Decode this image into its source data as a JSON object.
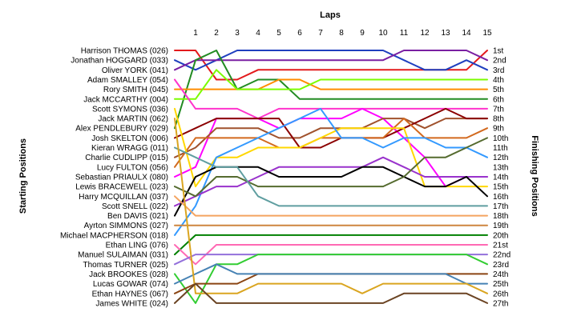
{
  "chart_data": {
    "type": "line",
    "xlabel": "Laps",
    "ylabel_left": "Starting Positions",
    "ylabel_right": "Finishing Positions",
    "x": [
      0,
      1,
      2,
      3,
      4,
      5,
      6,
      7,
      8,
      9,
      10,
      11,
      12,
      13,
      14,
      15
    ],
    "x_ticks": [
      "1",
      "2",
      "3",
      "4",
      "5",
      "6",
      "7",
      "8",
      "9",
      "10",
      "11",
      "12",
      "13",
      "14",
      "15"
    ],
    "y_reversed": true,
    "ylim": [
      1,
      27
    ],
    "grid": false,
    "starting_positions": [
      "Harrison THOMAS (026)",
      "Jonathan HOGGARD (033)",
      "Oliver YORK (041)",
      "Adam SMALLEY (054)",
      "Rory SMITH (045)",
      "Jack MCCARTHY (004)",
      "Scott SYMONS (036)",
      "Jack MARTIN (062)",
      "Alex PENDLEBURY (029)",
      "Josh SKELTON (006)",
      "Kieran WRAGG (011)",
      "Charlie CUDLIPP (015)",
      "Lucy FULTON (056)",
      "Sebastian PRIAULX (080)",
      "Lewis BRACEWELL (023)",
      "Harry MCQUILLAN (037)",
      "Scott SNELL (022)",
      "Ben DAVIS (021)",
      "Ayrton SIMMONS (027)",
      "Michael MACPHERSON (018)",
      "Ethan LING (076)",
      "Manuel SULAIMAN (031)",
      "Thomas TURNER (025)",
      "Jack BROOKES (028)",
      "Lucas GOWAR (074)",
      "Ethan HAYNES (067)",
      "James WHITE (024)"
    ],
    "finishing_positions": [
      "1st",
      "2nd",
      "3rd",
      "4th",
      "5th",
      "6th",
      "7th",
      "8th",
      "9th",
      "10th",
      "11th",
      "12th",
      "13th",
      "14th",
      "15th",
      "16th",
      "17th",
      "18th",
      "19th",
      "20th",
      "21st",
      "22nd",
      "23rd",
      "24th",
      "25th",
      "26th",
      "27th"
    ],
    "series": [
      {
        "color": "#e31a1c",
        "values": [
          1,
          1,
          4,
          4,
          3,
          3,
          3,
          3,
          3,
          3,
          3,
          3,
          3,
          3,
          3,
          1
        ]
      },
      {
        "color": "#1f3fbf",
        "values": [
          2,
          3,
          2,
          1,
          1,
          1,
          1,
          1,
          1,
          1,
          1,
          2,
          3,
          3,
          2,
          3
        ]
      },
      {
        "color": "#7a1fa2",
        "values": [
          3,
          2,
          2,
          2,
          2,
          2,
          2,
          2,
          2,
          2,
          2,
          1,
          1,
          1,
          1,
          2
        ]
      },
      {
        "color": "#228b22",
        "values": [
          9,
          2,
          1,
          5,
          4,
          4,
          6,
          6,
          6,
          6,
          6,
          6,
          6,
          6,
          6,
          6
        ]
      },
      {
        "color": "#ff8c00",
        "values": [
          5,
          5,
          5,
          5,
          5,
          4,
          4,
          5,
          5,
          5,
          5,
          5,
          5,
          5,
          5,
          5
        ]
      },
      {
        "color": "#7cfc00",
        "values": [
          6,
          6,
          3,
          5,
          5,
          5,
          5,
          4,
          4,
          4,
          4,
          4,
          4,
          4,
          4,
          4
        ]
      },
      {
        "color": "#ff33cc",
        "values": [
          4,
          7,
          7,
          7,
          8,
          7,
          7,
          7,
          7,
          7,
          7,
          7,
          7,
          7,
          7,
          7
        ]
      },
      {
        "color": "#ff00ff",
        "values": [
          14,
          13,
          8,
          8,
          8,
          9,
          8,
          8,
          8,
          7,
          8,
          10,
          12,
          15,
          14,
          14
        ]
      },
      {
        "color": "#a0522d",
        "values": [
          12,
          11,
          9,
          9,
          9,
          10,
          10,
          9,
          9,
          9,
          8,
          8,
          9,
          8,
          8,
          8
        ]
      },
      {
        "color": "#8b0000",
        "values": [
          10,
          9,
          8,
          8,
          8,
          8,
          11,
          11,
          10,
          10,
          10,
          9,
          8,
          7,
          8,
          8
        ]
      },
      {
        "color": "#d2691e",
        "values": [
          13,
          10,
          10,
          10,
          10,
          11,
          11,
          10,
          10,
          10,
          10,
          8,
          10,
          10,
          10,
          9
        ]
      },
      {
        "color": "#ffd700",
        "values": [
          7,
          15,
          12,
          12,
          11,
          11,
          11,
          10,
          9,
          9,
          9,
          9,
          15,
          15,
          15,
          15
        ]
      },
      {
        "color": "#3399ff",
        "values": [
          20,
          17,
          12,
          11,
          10,
          9,
          8,
          7,
          10,
          10,
          11,
          10,
          10,
          11,
          11,
          12
        ]
      },
      {
        "color": "#9932cc",
        "values": [
          17,
          16,
          15,
          15,
          14,
          13,
          13,
          13,
          13,
          13,
          12,
          13,
          14,
          14,
          14,
          14
        ]
      },
      {
        "color": "#000000",
        "values": [
          18,
          14,
          13,
          13,
          13,
          14,
          14,
          14,
          14,
          13,
          13,
          14,
          15,
          15,
          14,
          16
        ]
      },
      {
        "color": "#556b2f",
        "values": [
          15,
          16,
          14,
          14,
          15,
          15,
          15,
          15,
          15,
          15,
          15,
          14,
          12,
          12,
          11,
          10
        ]
      },
      {
        "color": "#5f9ea0",
        "values": [
          11,
          12,
          13,
          13,
          16,
          17,
          17,
          17,
          17,
          17,
          17,
          17,
          17,
          17,
          17,
          17
        ]
      },
      {
        "color": "#f4a460",
        "values": [
          16,
          18,
          18,
          18,
          18,
          18,
          18,
          18,
          18,
          18,
          18,
          18,
          18,
          18,
          18,
          18
        ]
      },
      {
        "color": "#cd853f",
        "values": [
          19,
          19,
          19,
          19,
          19,
          19,
          19,
          19,
          19,
          19,
          19,
          19,
          19,
          19,
          19,
          19
        ]
      },
      {
        "color": "#008000",
        "values": [
          22,
          20,
          20,
          20,
          20,
          20,
          20,
          20,
          20,
          20,
          20,
          20,
          20,
          20,
          20,
          20
        ]
      },
      {
        "color": "#ff69b4",
        "values": [
          21,
          23,
          21,
          21,
          21,
          21,
          21,
          21,
          21,
          21,
          21,
          21,
          21,
          21,
          21,
          21
        ]
      },
      {
        "color": "#9370db",
        "values": [
          23,
          22,
          22,
          22,
          22,
          22,
          22,
          22,
          22,
          22,
          22,
          22,
          22,
          22,
          22,
          22
        ]
      },
      {
        "color": "#32cd32",
        "values": [
          24,
          27,
          23,
          23,
          22,
          22,
          22,
          22,
          22,
          22,
          22,
          22,
          22,
          22,
          22,
          23
        ]
      },
      {
        "color": "#8b4513",
        "values": [
          26,
          25,
          25,
          25,
          24,
          24,
          24,
          24,
          24,
          24,
          24,
          24,
          24,
          24,
          24,
          24
        ]
      },
      {
        "color": "#4682b4",
        "values": [
          25,
          24,
          23,
          24,
          24,
          24,
          24,
          24,
          24,
          24,
          24,
          24,
          24,
          24,
          25,
          25
        ]
      },
      {
        "color": "#daa520",
        "values": [
          8,
          26,
          26,
          26,
          25,
          25,
          25,
          25,
          25,
          26,
          25,
          25,
          25,
          25,
          25,
          26
        ]
      },
      {
        "color": "#6b4423",
        "values": [
          27,
          25,
          27,
          27,
          27,
          27,
          27,
          27,
          27,
          27,
          27,
          26,
          26,
          26,
          26,
          27
        ]
      }
    ]
  }
}
